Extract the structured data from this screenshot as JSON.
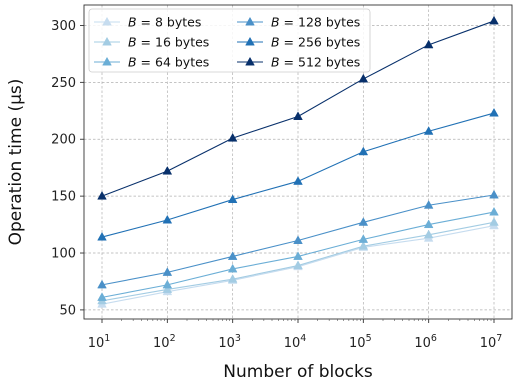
{
  "chart_data": {
    "type": "line",
    "xlabel": "Number of blocks",
    "ylabel": "Operation time (μs)",
    "x_scale": "log",
    "x": [
      10,
      100,
      1000,
      10000,
      100000,
      1000000,
      10000000
    ],
    "x_tick_labels": [
      {
        "base": "10",
        "exp": "1"
      },
      {
        "base": "10",
        "exp": "2"
      },
      {
        "base": "10",
        "exp": "3"
      },
      {
        "base": "10",
        "exp": "4"
      },
      {
        "base": "10",
        "exp": "5"
      },
      {
        "base": "10",
        "exp": "6"
      },
      {
        "base": "10",
        "exp": "7"
      }
    ],
    "y_ticks": [
      50,
      100,
      150,
      200,
      250,
      300
    ],
    "ylim": [
      42,
      318
    ],
    "grid": true,
    "legend_position": "top-left",
    "series": [
      {
        "name": "B = 8 bytes",
        "italic": "B",
        "rest": " = 8 bytes",
        "color": "#c6dcef",
        "values": [
          55,
          66,
          76,
          88,
          105,
          113,
          124
        ]
      },
      {
        "name": "B = 16 bytes",
        "italic": "B",
        "rest": " = 16 bytes",
        "color": "#a3cce3",
        "values": [
          58,
          68,
          77,
          89,
          106,
          116,
          127
        ]
      },
      {
        "name": "B = 64 bytes",
        "italic": "B",
        "rest": " = 64 bytes",
        "color": "#6baed6",
        "values": [
          61,
          72,
          86,
          97,
          112,
          125,
          136
        ]
      },
      {
        "name": "B = 128 bytes",
        "italic": "B",
        "rest": " = 128 bytes",
        "color": "#4a90c8",
        "values": [
          72,
          83,
          97,
          111,
          127,
          142,
          151
        ]
      },
      {
        "name": "B = 256 bytes",
        "italic": "B",
        "rest": " = 256 bytes",
        "color": "#2171b5",
        "values": [
          114,
          129,
          147,
          163,
          189,
          207,
          223
        ]
      },
      {
        "name": "B = 512 bytes",
        "italic": "B",
        "rest": " = 512 bytes",
        "color": "#08306b",
        "values": [
          150,
          172,
          201,
          220,
          253,
          283,
          304
        ]
      }
    ]
  }
}
